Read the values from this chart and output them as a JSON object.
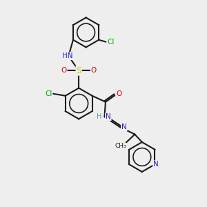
{
  "bg_color": "#eeeeee",
  "bond_color": "#1a1a1a",
  "bond_width": 1.5,
  "atom_colors": {
    "C": "#1a1a1a",
    "H": "#5599aa",
    "N": "#2222cc",
    "O": "#dd0000",
    "S": "#cccc00",
    "Cl": "#00aa00"
  },
  "font_size": 7.5
}
